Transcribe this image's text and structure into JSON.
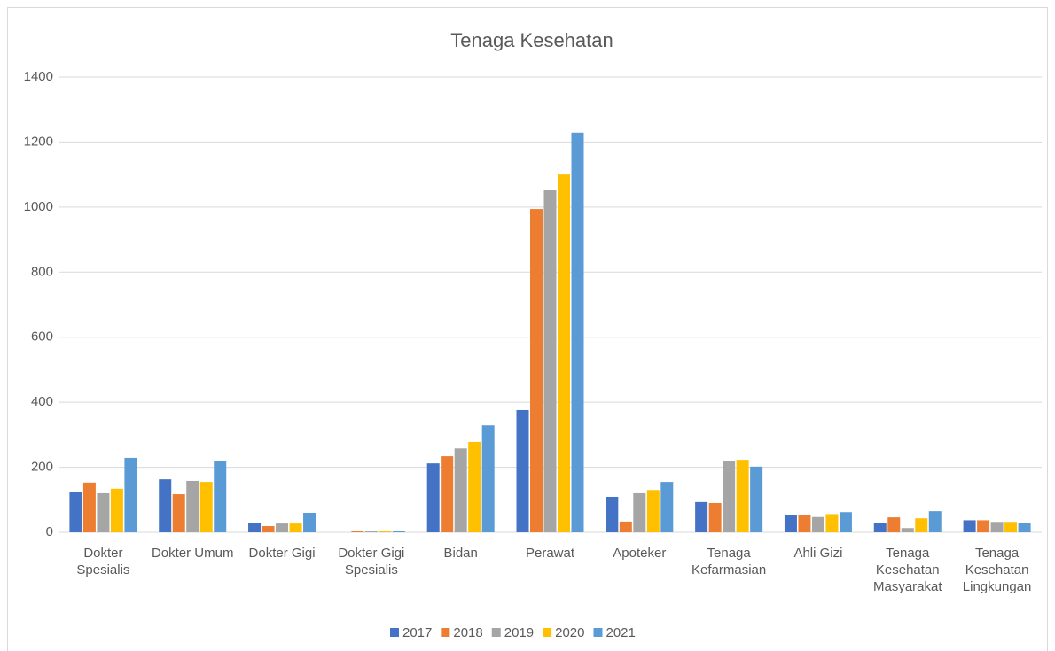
{
  "chart_data": {
    "type": "bar",
    "title": "Tenaga Kesehatan",
    "categories": [
      "Dokter Spesialis",
      "Dokter Umum",
      "Dokter Gigi",
      "Dokter Gigi Spesialis",
      "Bidan",
      "Perawat",
      "Apoteker",
      "Tenaga Kefarmasian",
      "Ahli Gizi",
      "Tenaga Kesehatan Masyarakat",
      "Tenaga Kesehatan Lingkungan"
    ],
    "series": [
      {
        "name": "2017",
        "color": "#4472c4",
        "values": [
          123,
          163,
          30,
          0,
          212,
          376,
          109,
          93,
          54,
          28,
          37
        ]
      },
      {
        "name": "2018",
        "color": "#ed7d31",
        "values": [
          153,
          117,
          19,
          3,
          234,
          994,
          33,
          90,
          54,
          46,
          37
        ]
      },
      {
        "name": "2019",
        "color": "#a5a5a5",
        "values": [
          120,
          158,
          27,
          4,
          258,
          1054,
          120,
          220,
          47,
          13,
          32
        ]
      },
      {
        "name": "2020",
        "color": "#ffc000",
        "values": [
          134,
          155,
          27,
          4,
          278,
          1100,
          130,
          223,
          56,
          43,
          32
        ]
      },
      {
        "name": "2021",
        "color": "#5b9bd5",
        "values": [
          229,
          218,
          60,
          5,
          329,
          1229,
          155,
          202,
          62,
          65,
          29
        ]
      }
    ],
    "ylim": [
      0,
      1400
    ],
    "yticks": [
      0,
      200,
      400,
      600,
      800,
      1000,
      1200,
      1400
    ],
    "grid": true,
    "legend": "bottom"
  }
}
